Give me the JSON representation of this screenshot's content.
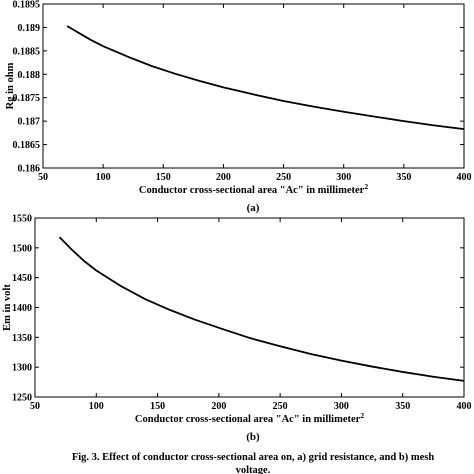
{
  "chart_data": [
    {
      "type": "line",
      "panel_label": "(a)",
      "xlabel": "Conductor cross-sectional area \"Ac\" in millimeter",
      "xlabel_sup": "2",
      "ylabel": "Rg in ohm",
      "xlim": [
        50,
        400
      ],
      "ylim": [
        0.186,
        0.1895
      ],
      "xticks": [
        "50",
        "100",
        "150",
        "200",
        "250",
        "300",
        "350",
        "400"
      ],
      "yticks": [
        "0.186",
        "0.1865",
        "0.187",
        "0.1875",
        "0.188",
        "0.1885",
        "0.189",
        "0.1895"
      ],
      "series": [
        {
          "x": [
            70,
            80,
            90,
            100,
            120,
            140,
            160,
            180,
            200,
            225,
            250,
            275,
            300,
            325,
            350,
            375,
            400
          ],
          "y": [
            0.18903,
            0.18888,
            0.18873,
            0.1886,
            0.18838,
            0.18818,
            0.18801,
            0.18786,
            0.18772,
            0.18757,
            0.18743,
            0.18731,
            0.1872,
            0.1871,
            0.187,
            0.18691,
            0.18683
          ],
          "color": "#000000"
        }
      ]
    },
    {
      "type": "line",
      "panel_label": "(b)",
      "xlabel": "Conductor cross-sectional area \"Ac\" in millimeter",
      "xlabel_sup": "2",
      "ylabel": "Em in volt",
      "xlim": [
        50,
        400
      ],
      "ylim": [
        1250,
        1550
      ],
      "xticks": [
        "50",
        "100",
        "150",
        "200",
        "250",
        "300",
        "350",
        "400"
      ],
      "yticks": [
        "1250",
        "1300",
        "1350",
        "1400",
        "1450",
        "1500",
        "1550"
      ],
      "series": [
        {
          "x": [
            70,
            80,
            90,
            100,
            120,
            140,
            160,
            180,
            200,
            225,
            250,
            275,
            300,
            325,
            350,
            375,
            400
          ],
          "y": [
            1518,
            1497,
            1478,
            1462,
            1436,
            1414,
            1396,
            1380,
            1366,
            1349,
            1335,
            1322,
            1311,
            1301,
            1292,
            1284,
            1277
          ],
          "color": "#000000"
        }
      ]
    }
  ],
  "caption": {
    "line1": "Fig. 3. Effect of conductor cross-sectional area on, a) grid resistance, and b) mesh",
    "line2": "voltage."
  }
}
